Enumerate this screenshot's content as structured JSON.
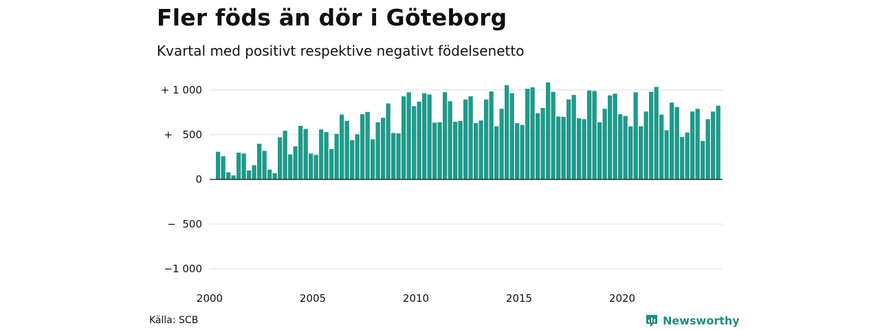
{
  "title": "Fler föds än dör i Göteborg",
  "subtitle": "Kvartal med positivt respektive negativt födelsenetto",
  "source": "Källa: SCB",
  "brand": "Newsworthy",
  "colors": {
    "bar": "#1f9a8a",
    "grid": "#dddddd",
    "brand": "#1f8f82"
  },
  "chart_data": {
    "type": "bar",
    "x_start": "2000 Q1",
    "x_tick_labels": [
      "2000",
      "2005",
      "2010",
      "2015",
      "2020"
    ],
    "y_tick_labels": [
      "+ 1 000",
      "+   500",
      "0",
      "−  500",
      "−1 000"
    ],
    "ylim": [
      -1000,
      1000
    ],
    "grid": true,
    "values": [
      310,
      260,
      80,
      45,
      300,
      290,
      100,
      160,
      400,
      320,
      110,
      70,
      470,
      545,
      280,
      370,
      600,
      565,
      290,
      275,
      560,
      530,
      340,
      510,
      725,
      655,
      440,
      505,
      730,
      755,
      450,
      640,
      690,
      850,
      520,
      515,
      930,
      975,
      820,
      870,
      965,
      950,
      635,
      640,
      975,
      875,
      645,
      655,
      895,
      930,
      630,
      660,
      895,
      985,
      595,
      790,
      1055,
      965,
      630,
      610,
      1015,
      1030,
      740,
      800,
      1085,
      980,
      705,
      700,
      895,
      945,
      685,
      675,
      995,
      990,
      640,
      790,
      940,
      960,
      730,
      710,
      595,
      975,
      595,
      760,
      980,
      1035,
      725,
      550,
      860,
      810,
      475,
      525,
      760,
      790,
      430,
      675,
      760,
      825
    ]
  }
}
